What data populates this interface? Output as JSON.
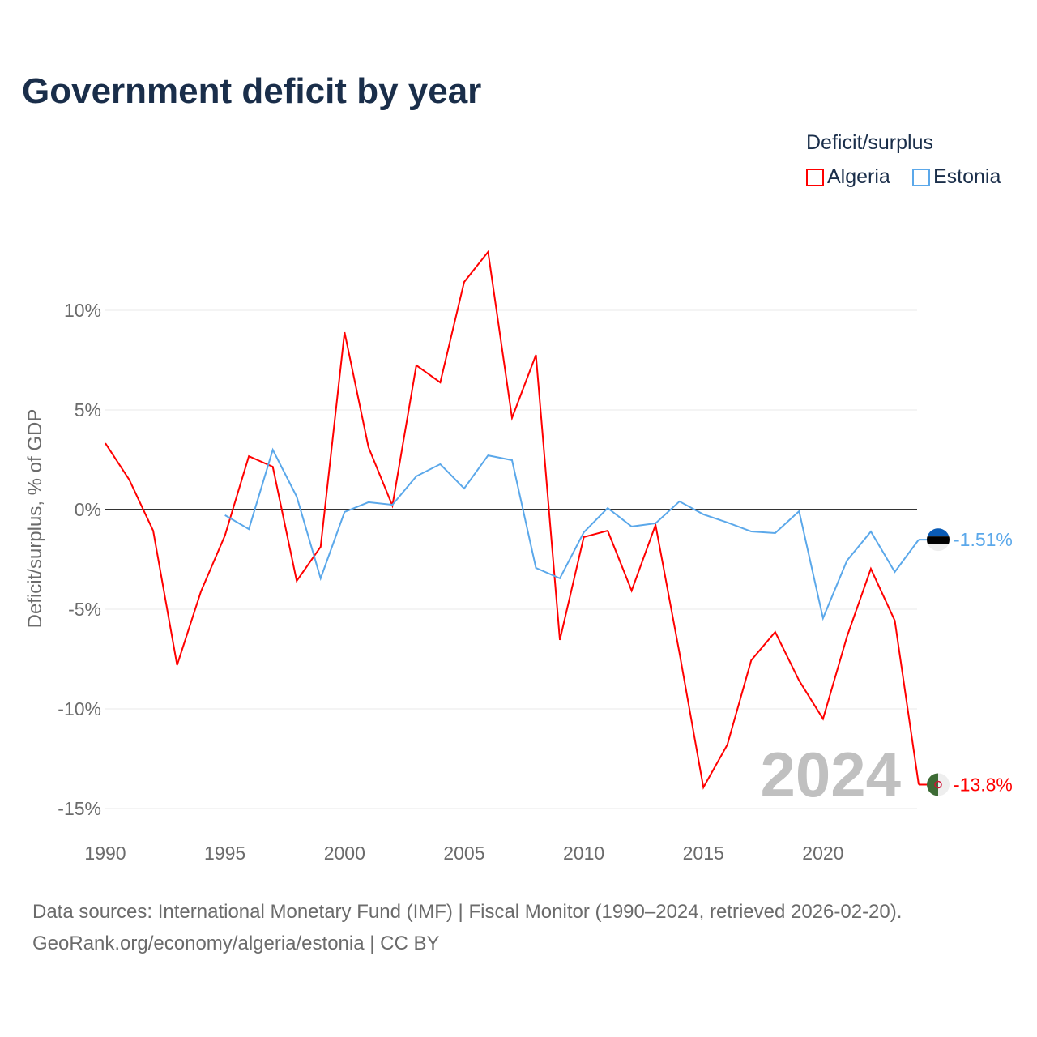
{
  "title": "Government deficit by year",
  "legend": {
    "title": "Deficit/surplus",
    "items": [
      {
        "label": "Algeria",
        "color": "#ff0000"
      },
      {
        "label": "Estonia",
        "color": "#5ba8ea"
      }
    ]
  },
  "source": {
    "line1": "Data sources: International Monetary Fund (IMF) | Fiscal Monitor (1990–2024, retrieved 2026-02-20).",
    "line2": "GeoRank.org/economy/algeria/estonia | CC BY"
  },
  "chart_data": {
    "type": "line",
    "title": "Government deficit by year",
    "xlabel": "",
    "ylabel": "Deficit/surplus, % of GDP",
    "xlim": [
      1990,
      2024
    ],
    "ylim": [
      -15,
      13
    ],
    "xticks": [
      1990,
      1995,
      2000,
      2005,
      2010,
      2015,
      2020
    ],
    "xtick_labels": [
      "1990",
      "1995",
      "2000",
      "2005",
      "2010",
      "2015",
      "2020"
    ],
    "yticks": [
      10,
      5,
      0,
      -5,
      -10,
      -15
    ],
    "ytick_labels": [
      "10%",
      "5%",
      "0%",
      "-5%",
      "-10%",
      "-15%"
    ],
    "grid": true,
    "legend_position": "top-right",
    "watermark_year": "2024",
    "series": [
      {
        "name": "Algeria",
        "color": "#ff0000",
        "end_label": "-13.8%",
        "x": [
          1990,
          1991,
          1992,
          1993,
          1994,
          1995,
          1996,
          1997,
          1998,
          1999,
          2000,
          2001,
          2002,
          2003,
          2004,
          2005,
          2006,
          2007,
          2008,
          2009,
          2010,
          2011,
          2012,
          2013,
          2014,
          2015,
          2016,
          2017,
          2018,
          2019,
          2020,
          2021,
          2022,
          2023,
          2024
        ],
        "values": [
          3.33,
          1.5,
          -1.06,
          -7.8,
          -4.1,
          -1.3,
          2.68,
          2.15,
          -3.58,
          -1.87,
          8.9,
          3.13,
          0.2,
          7.24,
          6.38,
          11.42,
          12.93,
          4.6,
          7.76,
          -6.54,
          -1.38,
          -1.06,
          -4.07,
          -0.77,
          -7.2,
          -13.94,
          -11.8,
          -7.56,
          -6.14,
          -8.58,
          -10.5,
          -6.38,
          -2.97,
          -5.57,
          -13.8
        ]
      },
      {
        "name": "Estonia",
        "color": "#5ba8ea",
        "end_label": "-1.51%",
        "x": [
          1995,
          1996,
          1997,
          1998,
          1999,
          2000,
          2001,
          2002,
          2003,
          2004,
          2005,
          2006,
          2007,
          2008,
          2009,
          2010,
          2011,
          2012,
          2013,
          2014,
          2015,
          2016,
          2017,
          2018,
          2019,
          2020,
          2021,
          2022,
          2023,
          2024
        ],
        "values": [
          -0.28,
          -0.98,
          3.0,
          0.65,
          -3.45,
          -0.12,
          0.37,
          0.24,
          1.67,
          2.28,
          1.06,
          2.72,
          2.48,
          -2.93,
          -3.45,
          -1.14,
          0.08,
          -0.85,
          -0.69,
          0.41,
          -0.24,
          -0.65,
          -1.1,
          -1.18,
          -0.08,
          -5.45,
          -2.56,
          -1.1,
          -3.13,
          -1.51
        ]
      }
    ]
  }
}
